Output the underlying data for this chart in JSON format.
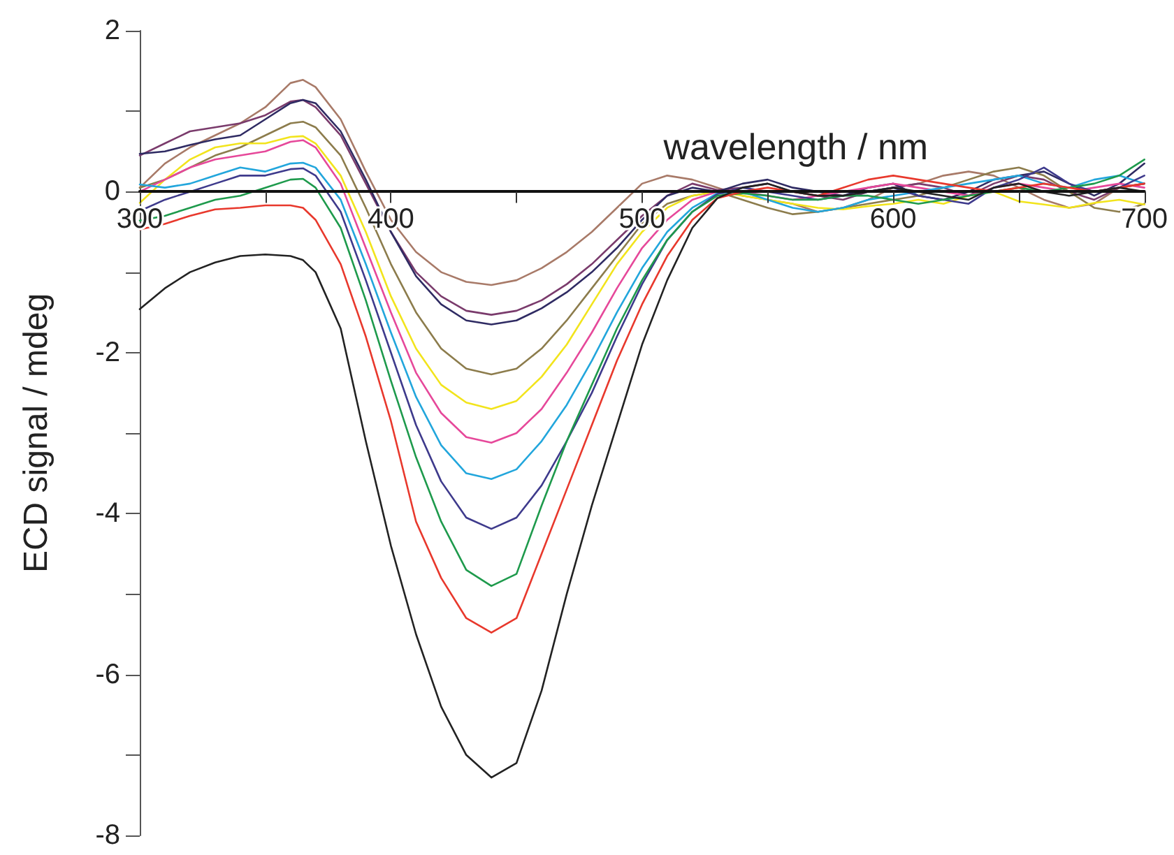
{
  "chart_data": {
    "type": "line",
    "xlabel": "wavelength / nm",
    "ylabel": "ECD signal / mdeg",
    "marker": "none",
    "line_style": "solid",
    "x": [
      300,
      310,
      320,
      330,
      340,
      350,
      360,
      365,
      370,
      380,
      390,
      400,
      410,
      420,
      430,
      440,
      450,
      460,
      470,
      480,
      490,
      500,
      510,
      520,
      530,
      540,
      550,
      560,
      570,
      580,
      590,
      600,
      610,
      620,
      630,
      640,
      650,
      660,
      670,
      680,
      690,
      700
    ],
    "xlim": [
      300,
      700
    ],
    "xticks": [
      300,
      {
        "value": 350,
        "label": null
      },
      400,
      {
        "value": 450,
        "label": null
      },
      500,
      {
        "value": 550,
        "label": null
      },
      600,
      {
        "value": 650,
        "label": null
      },
      700
    ],
    "ylim": [
      -8,
      2
    ],
    "yticks": [
      -8,
      {
        "value": -7,
        "label": null
      },
      -6,
      {
        "value": -5,
        "label": null
      },
      -4,
      {
        "value": -3,
        "label": null
      },
      -2,
      {
        "value": -1,
        "label": null
      },
      0,
      {
        "value": 1,
        "label": null
      },
      2
    ],
    "series": [
      {
        "color": "#a87a68",
        "values": [
          0.05,
          0.35,
          0.55,
          0.7,
          0.85,
          1.05,
          1.35,
          1.39,
          1.3,
          0.9,
          0.25,
          -0.35,
          -0.75,
          -1.0,
          -1.12,
          -1.16,
          -1.1,
          -0.95,
          -0.75,
          -0.5,
          -0.2,
          0.1,
          0.2,
          0.15,
          0.05,
          -0.05,
          -0.1,
          -0.15,
          -0.25,
          -0.2,
          -0.1,
          0.05,
          0.1,
          0.2,
          0.25,
          0.2,
          0.05,
          -0.1,
          -0.2,
          -0.15,
          0.05,
          0.1
        ]
      },
      {
        "color": "#7a3b6c",
        "values": [
          0.45,
          0.6,
          0.75,
          0.8,
          0.85,
          0.95,
          1.12,
          1.14,
          1.05,
          0.7,
          0.1,
          -0.5,
          -1.0,
          -1.3,
          -1.48,
          -1.53,
          -1.48,
          -1.35,
          -1.15,
          -0.9,
          -0.6,
          -0.3,
          -0.05,
          0.1,
          0.02,
          0.05,
          0.1,
          0.0,
          -0.05,
          -0.1,
          0.0,
          0.05,
          0.1,
          0.05,
          -0.05,
          0.1,
          0.2,
          0.15,
          0.0,
          -0.1,
          0.05,
          0.1
        ]
      },
      {
        "color": "#2f2b63",
        "values": [
          0.47,
          0.5,
          0.58,
          0.65,
          0.7,
          0.9,
          1.1,
          1.14,
          1.1,
          0.75,
          0.15,
          -0.5,
          -1.05,
          -1.4,
          -1.6,
          -1.65,
          -1.6,
          -1.45,
          -1.25,
          -1.0,
          -0.7,
          -0.35,
          -0.05,
          0.05,
          0.0,
          0.1,
          0.15,
          0.05,
          0.0,
          -0.05,
          0.05,
          0.1,
          -0.05,
          -0.1,
          0.0,
          0.15,
          0.2,
          0.25,
          0.1,
          -0.05,
          0.1,
          0.35
        ]
      },
      {
        "color": "#8c7c4c",
        "values": [
          0.05,
          0.15,
          0.3,
          0.45,
          0.55,
          0.7,
          0.85,
          0.87,
          0.8,
          0.45,
          -0.2,
          -0.9,
          -1.5,
          -1.95,
          -2.2,
          -2.27,
          -2.2,
          -1.95,
          -1.6,
          -1.2,
          -0.8,
          -0.4,
          -0.15,
          -0.05,
          0.0,
          -0.1,
          -0.2,
          -0.28,
          -0.25,
          -0.2,
          -0.15,
          -0.1,
          -0.05,
          0.05,
          0.15,
          0.25,
          0.3,
          0.2,
          0.0,
          -0.2,
          -0.25,
          -0.15
        ]
      },
      {
        "color": "#f2e41c",
        "values": [
          -0.14,
          0.15,
          0.4,
          0.55,
          0.6,
          0.6,
          0.68,
          0.69,
          0.6,
          0.2,
          -0.5,
          -1.3,
          -1.95,
          -2.4,
          -2.62,
          -2.7,
          -2.6,
          -2.3,
          -1.9,
          -1.4,
          -0.9,
          -0.5,
          -0.2,
          -0.05,
          0.0,
          -0.05,
          -0.1,
          -0.15,
          -0.2,
          -0.22,
          -0.18,
          -0.15,
          -0.1,
          -0.15,
          -0.05,
          0.0,
          -0.12,
          -0.16,
          -0.2,
          -0.14,
          -0.1,
          -0.16
        ]
      },
      {
        "color": "#e6489a",
        "values": [
          0.0,
          0.15,
          0.3,
          0.4,
          0.45,
          0.5,
          0.62,
          0.64,
          0.55,
          0.1,
          -0.7,
          -1.5,
          -2.25,
          -2.75,
          -3.05,
          -3.12,
          -3.0,
          -2.7,
          -2.25,
          -1.75,
          -1.2,
          -0.7,
          -0.35,
          -0.1,
          0.0,
          0.0,
          -0.05,
          -0.1,
          -0.05,
          0.0,
          0.05,
          0.1,
          0.05,
          0.0,
          -0.05,
          0.05,
          0.1,
          0.05,
          0.0,
          0.05,
          0.1,
          0.05
        ]
      },
      {
        "color": "#22a6dc",
        "values": [
          0.09,
          0.05,
          0.1,
          0.2,
          0.3,
          0.25,
          0.35,
          0.36,
          0.3,
          -0.1,
          -0.9,
          -1.75,
          -2.55,
          -3.15,
          -3.5,
          -3.57,
          -3.45,
          -3.1,
          -2.65,
          -2.1,
          -1.5,
          -0.95,
          -0.5,
          -0.2,
          -0.02,
          0.0,
          -0.1,
          -0.2,
          -0.25,
          -0.2,
          -0.1,
          -0.05,
          0.0,
          0.05,
          0.1,
          0.15,
          0.2,
          0.1,
          0.05,
          0.15,
          0.2,
          0.1
        ]
      },
      {
        "color": "#3e3a8c",
        "values": [
          -0.24,
          -0.1,
          0.0,
          0.1,
          0.2,
          0.2,
          0.28,
          0.29,
          0.2,
          -0.25,
          -1.1,
          -2.0,
          -2.9,
          -3.6,
          -4.05,
          -4.19,
          -4.05,
          -3.65,
          -3.1,
          -2.5,
          -1.8,
          -1.15,
          -0.6,
          -0.25,
          -0.03,
          0.05,
          0.0,
          -0.05,
          -0.1,
          -0.05,
          0.0,
          0.05,
          -0.05,
          -0.1,
          -0.15,
          0.05,
          0.15,
          0.3,
          0.1,
          0.0,
          0.05,
          0.2
        ]
      },
      {
        "color": "#1e9a4c",
        "values": [
          -0.36,
          -0.3,
          -0.2,
          -0.1,
          -0.05,
          0.05,
          0.15,
          0.16,
          0.05,
          -0.45,
          -1.35,
          -2.35,
          -3.3,
          -4.1,
          -4.7,
          -4.9,
          -4.75,
          -3.9,
          -3.1,
          -2.4,
          -1.7,
          -1.1,
          -0.6,
          -0.25,
          -0.05,
          -0.02,
          -0.05,
          -0.1,
          -0.1,
          -0.05,
          -0.05,
          -0.1,
          -0.15,
          -0.1,
          -0.05,
          0.0,
          0.05,
          0.0,
          0.05,
          0.1,
          0.2,
          0.4
        ]
      },
      {
        "color": "#e8382c",
        "values": [
          -0.47,
          -0.4,
          -0.3,
          -0.22,
          -0.2,
          -0.17,
          -0.17,
          -0.2,
          -0.35,
          -0.9,
          -1.8,
          -2.85,
          -4.1,
          -4.8,
          -5.3,
          -5.48,
          -5.3,
          -4.5,
          -3.7,
          -2.9,
          -2.1,
          -1.4,
          -0.8,
          -0.35,
          -0.08,
          0.0,
          0.05,
          0.0,
          -0.05,
          0.05,
          0.15,
          0.2,
          0.15,
          0.1,
          0.05,
          0.0,
          0.05,
          0.1,
          0.05,
          0.0,
          0.05,
          0.1
        ]
      },
      {
        "color": "#222222",
        "values": [
          -1.46,
          -1.2,
          -1.0,
          -0.88,
          -0.8,
          -0.78,
          -0.8,
          -0.85,
          -1.0,
          -1.7,
          -3.1,
          -4.4,
          -5.5,
          -6.4,
          -7.0,
          -7.28,
          -7.1,
          -6.2,
          -5.0,
          -3.9,
          -2.9,
          -1.9,
          -1.1,
          -0.45,
          -0.08,
          0.05,
          0.1,
          0.0,
          -0.05,
          -0.05,
          0.0,
          0.05,
          0.0,
          -0.05,
          -0.1,
          0.05,
          0.1,
          0.0,
          -0.05,
          0.0,
          0.05,
          0.0
        ]
      }
    ]
  }
}
